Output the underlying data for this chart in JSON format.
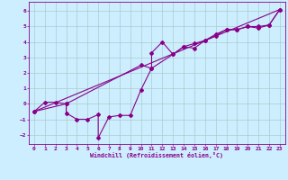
{
  "xlabel": "Windchill (Refroidissement éolien,°C)",
  "background_color": "#cceeff",
  "grid_color": "#aacccc",
  "line_color": "#880088",
  "xlim": [
    -0.5,
    23.5
  ],
  "ylim": [
    -2.6,
    6.6
  ],
  "xticks": [
    0,
    1,
    2,
    3,
    4,
    5,
    6,
    7,
    8,
    9,
    10,
    11,
    12,
    13,
    14,
    15,
    16,
    17,
    18,
    19,
    20,
    21,
    22,
    23
  ],
  "yticks": [
    -2,
    -1,
    0,
    1,
    2,
    3,
    4,
    5,
    6
  ],
  "curve1": [
    [
      0,
      -0.5
    ],
    [
      1,
      0.1
    ],
    [
      2,
      0.1
    ],
    [
      3,
      0.0
    ],
    [
      3,
      -0.6
    ],
    [
      4,
      -1.0
    ],
    [
      5,
      -1.0
    ],
    [
      6,
      -0.7
    ],
    [
      6,
      -2.2
    ],
    [
      7,
      -0.85
    ],
    [
      8,
      -0.75
    ],
    [
      9,
      -0.75
    ],
    [
      10,
      0.9
    ],
    [
      11,
      2.3
    ],
    [
      11,
      3.3
    ],
    [
      12,
      4.0
    ],
    [
      13,
      3.2
    ],
    [
      14,
      3.7
    ],
    [
      15,
      3.6
    ],
    [
      16,
      4.1
    ],
    [
      17,
      4.4
    ],
    [
      18,
      4.8
    ],
    [
      19,
      4.8
    ],
    [
      20,
      5.0
    ],
    [
      21,
      4.9
    ],
    [
      22,
      5.1
    ],
    [
      23,
      6.1
    ]
  ],
  "curve2": [
    [
      0,
      -0.5
    ],
    [
      3,
      0.0
    ],
    [
      10,
      2.5
    ],
    [
      11,
      2.3
    ],
    [
      13,
      3.2
    ],
    [
      14,
      3.7
    ],
    [
      15,
      3.9
    ],
    [
      16,
      4.1
    ],
    [
      17,
      4.5
    ],
    [
      18,
      4.8
    ],
    [
      19,
      4.8
    ],
    [
      20,
      5.0
    ],
    [
      21,
      5.0
    ],
    [
      22,
      5.1
    ],
    [
      23,
      6.1
    ]
  ],
  "diagonal_line": [
    [
      0,
      -0.5
    ],
    [
      23,
      6.1
    ]
  ],
  "marker_size": 2.0,
  "line_width": 0.8,
  "tick_fontsize": 4.5,
  "xlabel_fontsize": 4.8
}
